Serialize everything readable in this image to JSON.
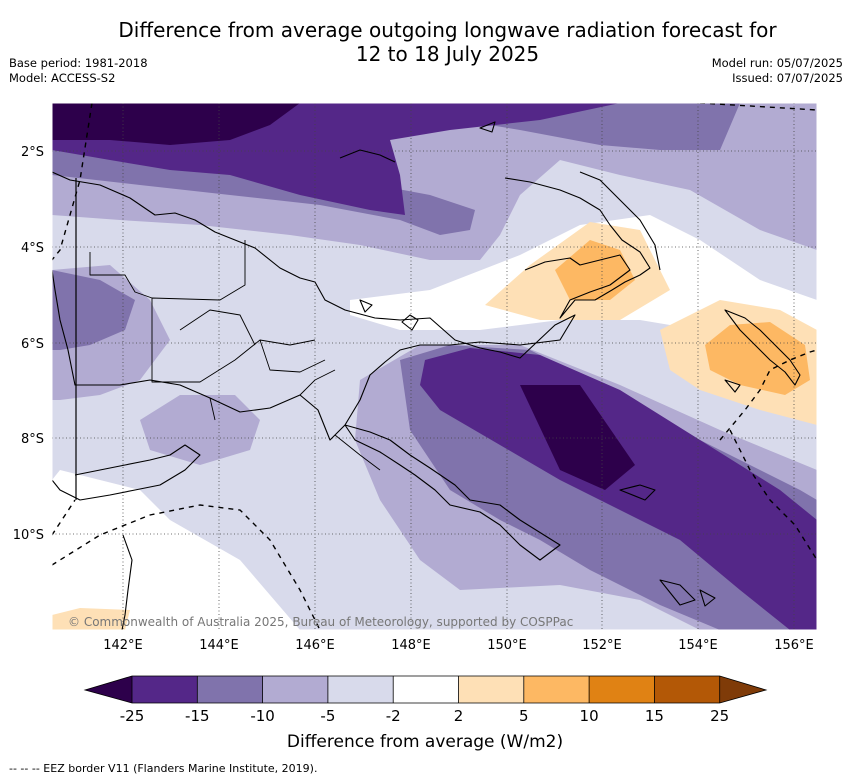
{
  "title_line1": "Difference from average outgoing longwave radiation forecast for",
  "title_line2": "12 to 18 July 2025",
  "base_period": "Base period: 1981-2018",
  "model": "Model: ACCESS-S2",
  "model_run": "Model run: 05/07/2025",
  "issued": "Issued: 07/07/2025",
  "lat_labels": [
    "2°S",
    "4°S",
    "6°S",
    "8°S",
    "10°S"
  ],
  "lon_labels": [
    "142°E",
    "144°E",
    "146°E",
    "148°E",
    "150°E",
    "152°E",
    "154°E",
    "156°E"
  ],
  "copyright": "© Commonwealth of Australia 2025, Bureau of Meteorology, supported by COSPPac",
  "colorbar": {
    "ticks": [
      "-25",
      "-15",
      "-10",
      "-5",
      "-2",
      "2",
      "5",
      "10",
      "15",
      "25"
    ],
    "colors": [
      "#2d004b",
      "#542788",
      "#8073ac",
      "#b2abd2",
      "#d8daeb",
      "#ffffff",
      "#fee0b6",
      "#fdb863",
      "#e08214",
      "#b35806",
      "#7f3b08"
    ],
    "label": "Difference from average (W/m2)"
  },
  "legend_note": "--  --  -- EEZ border V11 (Flanders Marine Institute, 2019)."
}
